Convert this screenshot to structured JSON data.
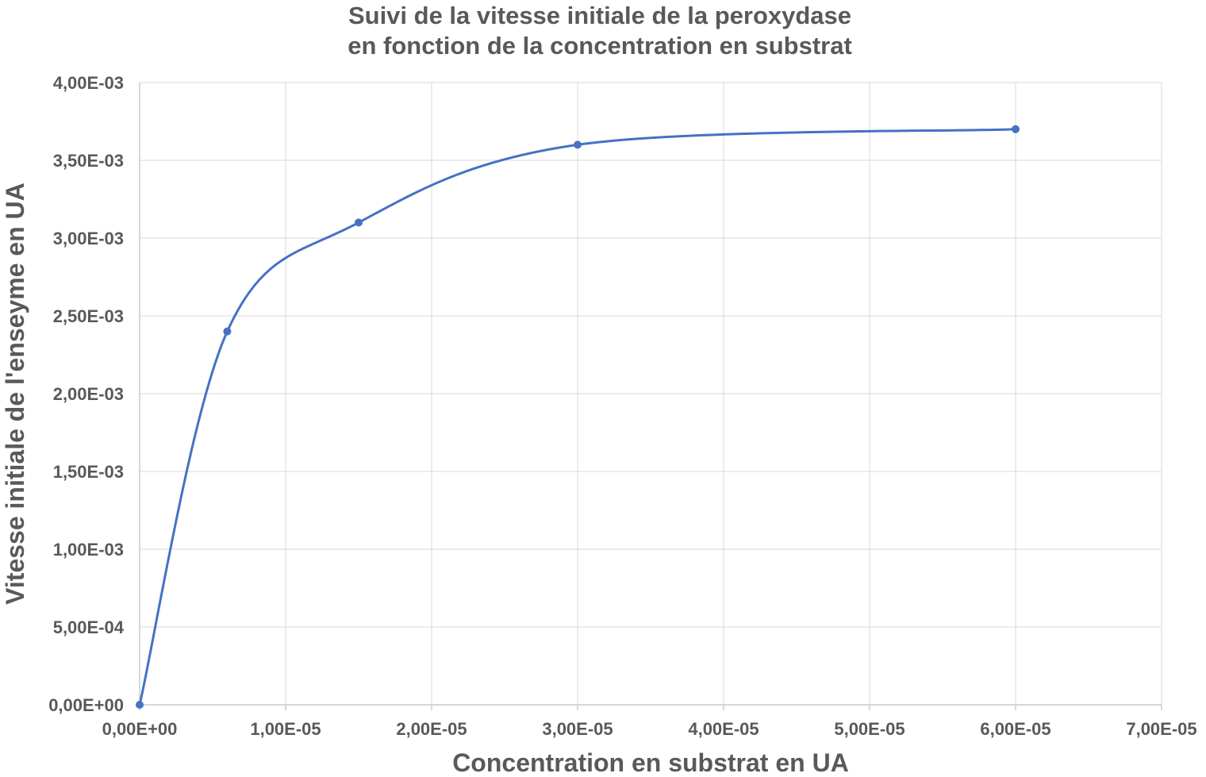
{
  "chart_data": {
    "type": "scatter",
    "title_lines": [
      "Suivi de la vitesse initiale de la peroxydase",
      "en fonction de la concentration en substrat"
    ],
    "xlabel": "Concentration en substrat en UA",
    "ylabel": "Vitesse initiale de l'enseyme en UA",
    "xlim": [
      0,
      7e-05
    ],
    "ylim": [
      0,
      0.004
    ],
    "x_ticks": [
      0,
      1e-05,
      2e-05,
      3e-05,
      4e-05,
      5e-05,
      6e-05,
      7e-05
    ],
    "x_tick_labels": [
      "0,00E+00",
      "1,00E-05",
      "2,00E-05",
      "3,00E-05",
      "4,00E-05",
      "5,00E-05",
      "6,00E-05",
      "7,00E-05"
    ],
    "y_ticks": [
      0,
      0.0005,
      0.001,
      0.0015,
      0.002,
      0.0025,
      0.003,
      0.0035,
      0.004
    ],
    "y_tick_labels": [
      "0,00E+00",
      "5,00E-04",
      "1,00E-03",
      "1,50E-03",
      "2,00E-03",
      "2,50E-03",
      "3,00E-03",
      "3,50E-03",
      "4,00E-03"
    ],
    "grid": true,
    "smooth_line": true,
    "series": [
      {
        "color": "#4472c4",
        "x": [
          0,
          6e-06,
          1.5e-05,
          3e-05,
          6e-05
        ],
        "y": [
          0,
          0.0024,
          0.0031,
          0.0036,
          0.0037
        ]
      }
    ]
  }
}
